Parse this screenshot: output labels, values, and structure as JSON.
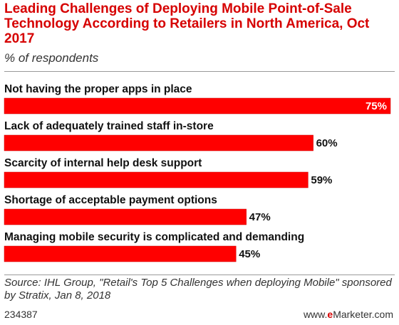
{
  "header": {
    "title": "Leading Challenges of Deploying Mobile Point-of-Sale Technology According to Retailers in North America, Oct 2017",
    "subtitle": "% of respondents"
  },
  "chart_data": {
    "type": "bar",
    "orientation": "horizontal",
    "categories": [
      "Not having the proper apps in place",
      "Lack of adequately trained staff in-store",
      "Scarcity of internal help desk support",
      "Shortage of acceptable payment options",
      "Managing mobile security is complicated and demanding"
    ],
    "values": [
      75,
      60,
      59,
      47,
      45
    ],
    "value_labels": [
      "75%",
      "60%",
      "59%",
      "47%",
      "45%"
    ],
    "title": "Leading Challenges of Deploying Mobile Point-of-Sale Technology According to Retailers in North America, Oct 2017",
    "subtitle": "% of respondents",
    "xlabel": "",
    "ylabel": "",
    "xlim": [
      0,
      75
    ],
    "grid": false,
    "bar_color": "#ff0000"
  },
  "source": {
    "text": "Source: IHL Group, \"Retail's Top 5 Challenges when deploying Mobile\" sponsored by Stratix, Jan 8, 2018"
  },
  "footer": {
    "chart_id": "234387",
    "brand_prefix": "www.",
    "brand_e": "e",
    "brand_suffix": "Marketer.com"
  },
  "colors": {
    "accent": "#d60000",
    "bar": "#ff0000",
    "bar_outline": "#cc0000"
  }
}
